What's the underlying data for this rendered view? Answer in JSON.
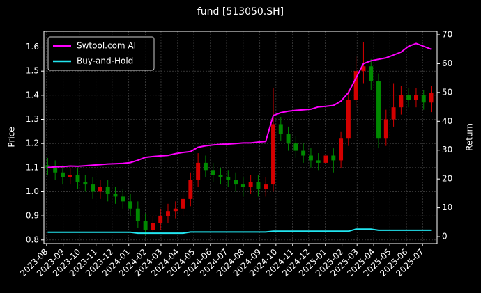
{
  "chart_data": {
    "type": "candlestick",
    "title": "fund [513050.SH]",
    "ylabel": "Price",
    "y2label": "Return",
    "x": [
      2,
      16,
      30,
      44,
      58,
      72,
      86,
      100,
      114,
      128,
      142,
      156,
      170,
      184,
      198,
      212,
      226,
      240,
      254,
      268,
      282,
      296,
      310,
      324,
      338,
      352,
      366,
      380,
      394,
      408,
      422,
      436,
      450,
      464,
      478,
      492,
      506,
      520,
      534,
      548,
      562,
      576,
      590,
      604,
      618,
      632,
      646,
      660,
      674,
      688,
      702,
      716
    ],
    "open": [
      1.11,
      1.1,
      1.08,
      1.06,
      1.07,
      1.04,
      1.03,
      1.0,
      1.02,
      0.99,
      0.98,
      0.96,
      0.93,
      0.88,
      0.84,
      0.87,
      0.9,
      0.92,
      0.93,
      0.97,
      1.05,
      1.12,
      1.09,
      1.07,
      1.06,
      1.05,
      1.03,
      1.02,
      1.04,
      1.01,
      1.03,
      1.28,
      1.24,
      1.2,
      1.17,
      1.15,
      1.13,
      1.12,
      1.15,
      1.13,
      1.22,
      1.38,
      1.5,
      1.52,
      1.46,
      1.22,
      1.3,
      1.35,
      1.4,
      1.38,
      1.4,
      1.37
    ],
    "high": [
      1.14,
      1.13,
      1.11,
      1.1,
      1.1,
      1.07,
      1.06,
      1.05,
      1.05,
      1.02,
      1.01,
      0.99,
      0.96,
      0.91,
      0.9,
      0.93,
      0.95,
      0.96,
      1.0,
      1.08,
      1.16,
      1.15,
      1.12,
      1.1,
      1.09,
      1.08,
      1.06,
      1.07,
      1.07,
      1.06,
      1.43,
      1.31,
      1.27,
      1.23,
      1.2,
      1.18,
      1.16,
      1.18,
      1.18,
      1.25,
      1.42,
      1.56,
      1.62,
      1.55,
      1.49,
      1.34,
      1.45,
      1.44,
      1.43,
      1.43,
      1.42,
      1.44
    ],
    "low": [
      1.07,
      1.05,
      1.03,
      1.03,
      1.01,
      1.0,
      0.97,
      0.97,
      0.96,
      0.95,
      0.93,
      0.9,
      0.85,
      0.82,
      0.83,
      0.84,
      0.87,
      0.89,
      0.9,
      0.94,
      1.02,
      1.06,
      1.04,
      1.03,
      1.02,
      1.0,
      0.98,
      0.99,
      0.98,
      0.98,
      1.0,
      1.21,
      1.17,
      1.14,
      1.12,
      1.1,
      1.09,
      1.09,
      1.08,
      1.1,
      1.19,
      1.35,
      1.45,
      1.42,
      1.18,
      1.19,
      1.27,
      1.32,
      1.35,
      1.35,
      1.34,
      1.33
    ],
    "close": [
      1.1,
      1.08,
      1.06,
      1.07,
      1.04,
      1.03,
      1.0,
      1.02,
      0.99,
      0.98,
      0.96,
      0.93,
      0.88,
      0.84,
      0.87,
      0.9,
      0.92,
      0.93,
      0.97,
      1.05,
      1.12,
      1.09,
      1.07,
      1.06,
      1.05,
      1.03,
      1.02,
      1.04,
      1.01,
      1.03,
      1.28,
      1.24,
      1.2,
      1.17,
      1.15,
      1.13,
      1.12,
      1.15,
      1.13,
      1.22,
      1.38,
      1.5,
      1.52,
      1.46,
      1.22,
      1.3,
      1.35,
      1.4,
      1.38,
      1.4,
      1.37,
      1.41
    ],
    "up_color": "#d40000",
    "down_color": "#008a00",
    "series": [
      {
        "name": "Swtool.com AI",
        "color": "#ff00ff",
        "axis": "y2",
        "values": [
          24,
          24.2,
          24.3,
          24.5,
          24.4,
          24.6,
          24.8,
          25,
          25.2,
          25.3,
          25.4,
          25.7,
          26.5,
          27.5,
          27.8,
          28,
          28.2,
          28.8,
          29.2,
          29.5,
          31,
          31.5,
          31.8,
          32,
          32.1,
          32.3,
          32.5,
          32.5,
          32.8,
          33,
          42,
          43,
          43.5,
          43.8,
          44,
          44.2,
          45,
          45.2,
          45.5,
          47,
          50,
          55,
          60,
          61,
          61.5,
          62,
          63,
          64,
          66,
          67,
          66,
          65
        ]
      },
      {
        "name": "Buy-and-Hold",
        "color": "#22e5f0",
        "axis": "y2",
        "values": [
          1.5,
          1.5,
          1.5,
          1.5,
          1.5,
          1.5,
          1.5,
          1.5,
          1.5,
          1.5,
          1.5,
          1.5,
          1.2,
          1.2,
          1.2,
          1.2,
          1.2,
          1.2,
          1.2,
          1.6,
          1.6,
          1.6,
          1.6,
          1.6,
          1.6,
          1.6,
          1.6,
          1.6,
          1.6,
          1.6,
          1.9,
          1.9,
          1.9,
          1.9,
          1.9,
          1.9,
          1.9,
          1.9,
          1.9,
          1.9,
          1.9,
          2.6,
          2.6,
          2.6,
          2.2,
          2.2,
          2.2,
          2.2,
          2.2,
          2.2,
          2.2,
          2.2
        ]
      }
    ],
    "xlim": [
      -5,
      727
    ],
    "ylim": [
      0.785,
      1.665
    ],
    "y2lim": [
      -2.4,
      71.2
    ],
    "xticks": [
      {
        "value": 0,
        "label": "2023-08"
      },
      {
        "value": 31,
        "label": "2023-09"
      },
      {
        "value": 61,
        "label": "2023-10"
      },
      {
        "value": 92,
        "label": "2023-11"
      },
      {
        "value": 122,
        "label": "2023-12"
      },
      {
        "value": 153,
        "label": "2024-01"
      },
      {
        "value": 184,
        "label": "2024-02"
      },
      {
        "value": 213,
        "label": "2024-03"
      },
      {
        "value": 244,
        "label": "2024-04"
      },
      {
        "value": 274,
        "label": "2024-05"
      },
      {
        "value": 305,
        "label": "2024-06"
      },
      {
        "value": 335,
        "label": "2024-07"
      },
      {
        "value": 366,
        "label": "2024-08"
      },
      {
        "value": 397,
        "label": "2024-09"
      },
      {
        "value": 427,
        "label": "2024-10"
      },
      {
        "value": 458,
        "label": "2024-11"
      },
      {
        "value": 488,
        "label": "2024-12"
      },
      {
        "value": 519,
        "label": "2025-01"
      },
      {
        "value": 550,
        "label": "2025-02"
      },
      {
        "value": 578,
        "label": "2025-03"
      },
      {
        "value": 609,
        "label": "2025-04"
      },
      {
        "value": 639,
        "label": "2025-05"
      },
      {
        "value": 670,
        "label": "2025-06"
      },
      {
        "value": 700,
        "label": "2025-07"
      }
    ],
    "yticks": [
      0.8,
      0.9,
      {
        "value": 1,
        "label": "1.0"
      },
      1.1,
      1.2,
      1.3,
      1.4,
      1.5,
      1.6
    ],
    "y2ticks": [
      0,
      10,
      20,
      30,
      40,
      50,
      60,
      70
    ],
    "grid": true,
    "legend": "upper left"
  }
}
